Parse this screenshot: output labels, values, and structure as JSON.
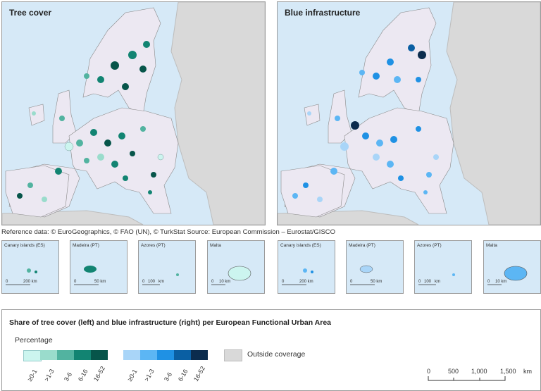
{
  "panels": {
    "left_title": "Tree cover",
    "right_title": "Blue infrastructure"
  },
  "reference": "Reference data: © EuroGeographics, © FAO (UN), © TurkStat Source: European Commission – Eurostat/GISCO",
  "insets": [
    {
      "label": "Canary islands (ES)",
      "scale": [
        "0",
        "200 km"
      ]
    },
    {
      "label": "Madeira (PT)",
      "scale": [
        "0",
        "50 km"
      ]
    },
    {
      "label": "Azores (PT)",
      "scale": [
        "0",
        "100",
        "km"
      ]
    },
    {
      "label": "Malta",
      "scale": [
        "0",
        "10 km"
      ]
    }
  ],
  "legend": {
    "title": "Share of tree cover (left) and blue infrastructure (right) per European Functional Urban Area",
    "subtitle": "Percentage",
    "classes": [
      "≥0-1",
      ">1-3",
      "3-6",
      "6-16",
      "16-52"
    ],
    "tree_colors": [
      "#ccf5ef",
      "#9adccc",
      "#52b3a0",
      "#128472",
      "#07554a"
    ],
    "blue_colors": [
      "#a9d5f8",
      "#5cb6f4",
      "#1f91e4",
      "#0a5fa3",
      "#0b2c4e"
    ],
    "outside_label": "Outside coverage",
    "scale": [
      "0",
      "500",
      "1,000",
      "1,500",
      "km"
    ]
  },
  "colors": {
    "sea": "#d6e9f7",
    "land_outside": "#d9d9d9",
    "land_fua_region": "#ece8f2"
  }
}
